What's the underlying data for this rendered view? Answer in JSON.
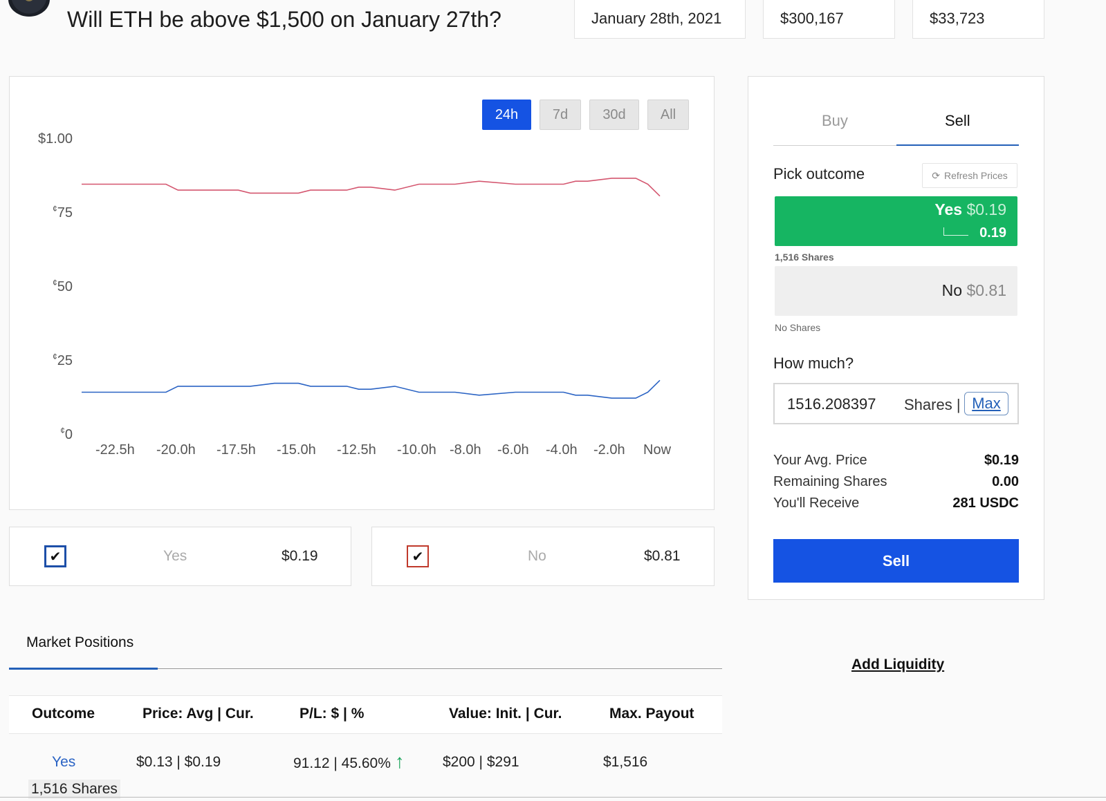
{
  "market": {
    "title": "Will ETH be above $1,500 on January 27th?",
    "end_date": "January 28th, 2021",
    "volume": "$300,167",
    "liquidity": "$33,723"
  },
  "chart": {
    "range_buttons": [
      "24h",
      "7d",
      "30d",
      "All"
    ],
    "active_range": "24h",
    "y_ticks": [
      {
        "prefix": "$",
        "text": "1.00"
      },
      {
        "prefix": "¢",
        "text": "75"
      },
      {
        "prefix": "¢",
        "text": "50"
      },
      {
        "prefix": "¢",
        "text": "25"
      },
      {
        "prefix": "¢",
        "text": "0"
      }
    ],
    "x_ticks": [
      "-22.5h",
      "-20.0h",
      "-17.5h",
      "-15.0h",
      "-12.5h",
      "-10.0h",
      "-8.0h",
      "-6.0h",
      "-4.0h",
      "-2.0h",
      "Now"
    ],
    "colors": {
      "yes": "#2a63c4",
      "no": "#d4566f"
    }
  },
  "chart_data": {
    "type": "line",
    "x": [
      "-24.0h",
      "-22.5h",
      "-21.0h",
      "-20.5h",
      "-20.0h",
      "-18.0h",
      "-17.5h",
      "-17.0h",
      "-16.0h",
      "-15.0h",
      "-14.5h",
      "-13.0h",
      "-12.5h",
      "-12.0h",
      "-11.0h",
      "-10.0h",
      "-9.0h",
      "-8.5h",
      "-7.5h",
      "-6.0h",
      "-4.5h",
      "-4.0h",
      "-3.5h",
      "-3.0h",
      "-2.0h",
      "-1.5h",
      "-1.0h",
      "-0.5h",
      "Now"
    ],
    "series": [
      {
        "values": [
          0.85,
          0.85,
          0.85,
          0.85,
          0.83,
          0.83,
          0.83,
          0.82,
          0.82,
          0.82,
          0.83,
          0.83,
          0.84,
          0.84,
          0.83,
          0.85,
          0.85,
          0.85,
          0.86,
          0.85,
          0.85,
          0.85,
          0.86,
          0.86,
          0.87,
          0.87,
          0.87,
          0.85,
          0.81
        ]
      },
      {
        "values": [
          0.15,
          0.15,
          0.15,
          0.15,
          0.17,
          0.17,
          0.17,
          0.17,
          0.18,
          0.18,
          0.17,
          0.17,
          0.16,
          0.16,
          0.17,
          0.15,
          0.15,
          0.15,
          0.14,
          0.15,
          0.15,
          0.15,
          0.14,
          0.14,
          0.13,
          0.13,
          0.13,
          0.15,
          0.19
        ]
      }
    ],
    "ylim": [
      0,
      1
    ]
  },
  "outcomes": [
    {
      "label": "Yes",
      "price": "$0.19",
      "color": "#1d4fa8"
    },
    {
      "label": "No",
      "price": "$0.81",
      "color": "#c0392b"
    }
  ],
  "positions": {
    "tab": "Market Positions",
    "headers": [
      "Outcome",
      "Price: Avg | Cur.",
      "P/L: $ | %",
      "Value: Init. | Cur.",
      "Max. Payout"
    ],
    "row": {
      "outcome": "Yes",
      "shares": "1,516 Shares",
      "price": "$0.13 | $0.19",
      "pl": "91.12 | 45.60%",
      "value": "$200 | $291",
      "max_payout": "$1,516"
    }
  },
  "trade": {
    "tabs": [
      "Buy",
      "Sell"
    ],
    "active_tab": "Sell",
    "pick_outcome": "Pick outcome",
    "refresh": "Refresh Prices",
    "yes_label": "Yes",
    "yes_price": "$0.19",
    "yes_sub": "0.19",
    "yes_shares": "1,516 Shares",
    "no_label": "No",
    "no_price": "$0.81",
    "no_shares": "No Shares",
    "how_much": "How much?",
    "amount": "1516.208397",
    "unit": "Shares |",
    "max": "Max",
    "summary": [
      {
        "label": "Your Avg. Price",
        "value": "$0.19"
      },
      {
        "label": "Remaining Shares",
        "value": "0.00"
      },
      {
        "label": "You'll Receive",
        "value": "281 USDC"
      }
    ],
    "action": "Sell",
    "add_liquidity": "Add Liquidity"
  }
}
